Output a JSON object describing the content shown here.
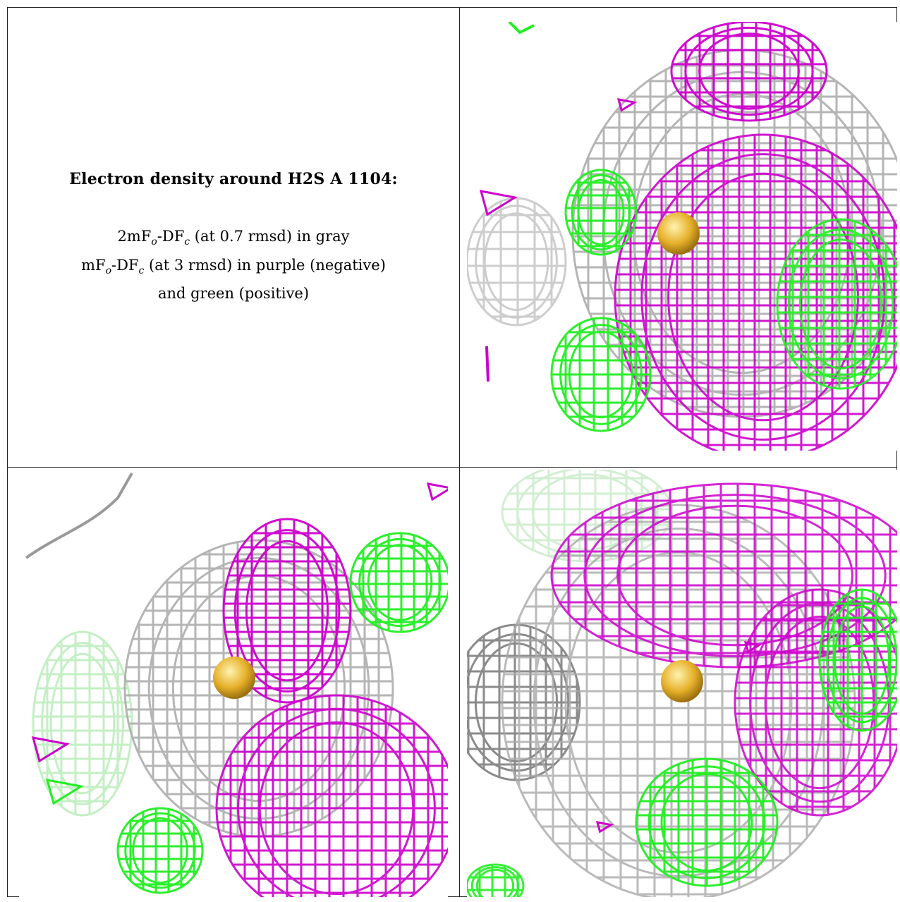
{
  "caption": {
    "title": "Electron density around H2S A 1104:",
    "line1_prefix": "2mF",
    "line1_sub1": "o",
    "line1_mid": "-DF",
    "line1_sub2": "c",
    "line1_suffix": " (at 0.7 rmsd) in gray",
    "line2_prefix": "mF",
    "line2_sub1": "o",
    "line2_mid": "-DF",
    "line2_sub2": "c",
    "line2_suffix": " (at 3 rmsd) in purple (negative)",
    "line3": "and green (positive)"
  },
  "colors": {
    "gray_map": "#a9a9a9",
    "negative_map": "#cc00cc",
    "positive_map": "#22ee22",
    "atom": "#e6b02a"
  },
  "panels": [
    {
      "name": "view-1"
    },
    {
      "name": "view-2"
    },
    {
      "name": "view-3"
    }
  ]
}
